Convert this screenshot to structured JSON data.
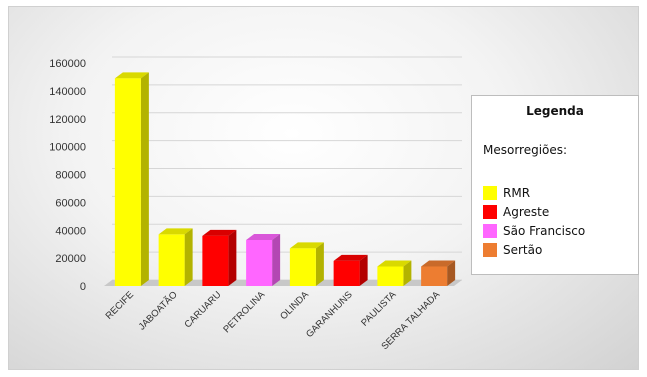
{
  "chart_data": {
    "type": "bar",
    "categories": [
      "RECIFE",
      "JABOATÃO",
      "CARUARU",
      "PETROLINA",
      "OLINDA",
      "GARANHUNS",
      "PAULISTA",
      "SERRA TALHADA"
    ],
    "values": [
      149000,
      37000,
      36000,
      33000,
      27000,
      18000,
      14000,
      14000
    ],
    "bar_groups": [
      "RMR",
      "RMR",
      "Agreste",
      "São Francisco",
      "RMR",
      "Agreste",
      "RMR",
      "Sertão"
    ],
    "yticks": [
      "0",
      "20000",
      "40000",
      "60000",
      "80000",
      "100000",
      "120000",
      "140000",
      "160000"
    ],
    "ylim": [
      0,
      160000
    ],
    "grid": true,
    "legend_placement": "right"
  },
  "legend": {
    "title": "Legenda",
    "subtitle": "Mesorregiões:",
    "items": [
      {
        "label": "RMR",
        "color": "#ffff00"
      },
      {
        "label": "Agreste",
        "color": "#ff0000"
      },
      {
        "label": "São Francisco",
        "color": "#ff66ff"
      },
      {
        "label": "Sertão",
        "color": "#ed7d31"
      }
    ]
  }
}
